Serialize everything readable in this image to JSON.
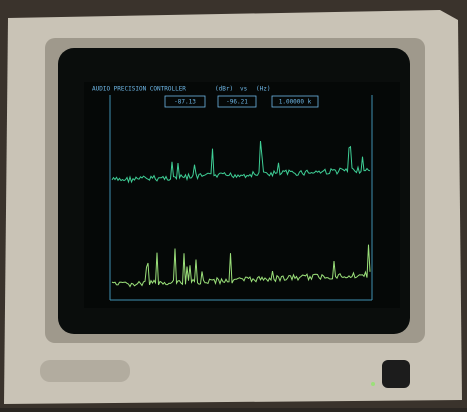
{
  "screen": {
    "header": {
      "title": "AUDIO PRECISION CONTROLLER",
      "units_y": "(dBr)",
      "vs": "vs",
      "units_x": "(Hz)"
    },
    "readouts": [
      "-87.13",
      "-96.21",
      "1.00000 k"
    ]
  }
}
